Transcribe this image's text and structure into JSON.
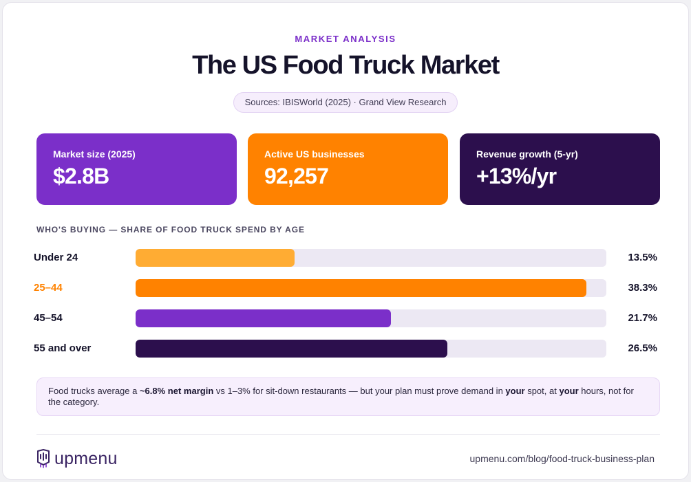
{
  "header": {
    "eyebrow": "MARKET ANALYSIS",
    "title": "The US Food Truck Market",
    "sources": "Sources: IBISWorld (2025) · Grand View Research"
  },
  "stats": [
    {
      "label": "Market size (2025)",
      "value": "$2.8B",
      "color": "#7b2fc9"
    },
    {
      "label": "Active US businesses",
      "value": "92,257",
      "color": "#ff8200"
    },
    {
      "label": "Revenue growth (5-yr)",
      "value": "+13%/yr",
      "color": "#2c0f4d"
    }
  ],
  "chart_data": {
    "type": "bar",
    "orientation": "horizontal",
    "title": "WHO'S BUYING — SHARE OF FOOD TRUCK SPEND BY AGE",
    "categories": [
      "Under 24",
      "25–44",
      "45–54",
      "55 and over"
    ],
    "values": [
      13.5,
      38.3,
      21.7,
      26.5
    ],
    "value_labels": [
      "13.5%",
      "38.3%",
      "21.7%",
      "26.5%"
    ],
    "unit": "%",
    "xlim": [
      0,
      40
    ],
    "colors": [
      "#ffac33",
      "#ff8200",
      "#7b2fc9",
      "#2c0f4d"
    ],
    "highlighted_category": "25–44",
    "highlight_color": "#ff8200",
    "grid": false
  },
  "note": {
    "parts": [
      {
        "text": "Food trucks average a ",
        "bold": false
      },
      {
        "text": "~6.8% net margin",
        "bold": true
      },
      {
        "text": " vs 1–3% for sit-down restaurants — but your plan must prove demand in ",
        "bold": false
      },
      {
        "text": "your",
        "bold": true
      },
      {
        "text": " spot, at ",
        "bold": false
      },
      {
        "text": "your",
        "bold": true
      },
      {
        "text": " hours, not for the category.",
        "bold": false
      }
    ]
  },
  "footer": {
    "logo_text": "upmenu",
    "logo_icon": "upmenu-logo-icon",
    "url": "upmenu.com/blog/food-truck-business-plan"
  }
}
